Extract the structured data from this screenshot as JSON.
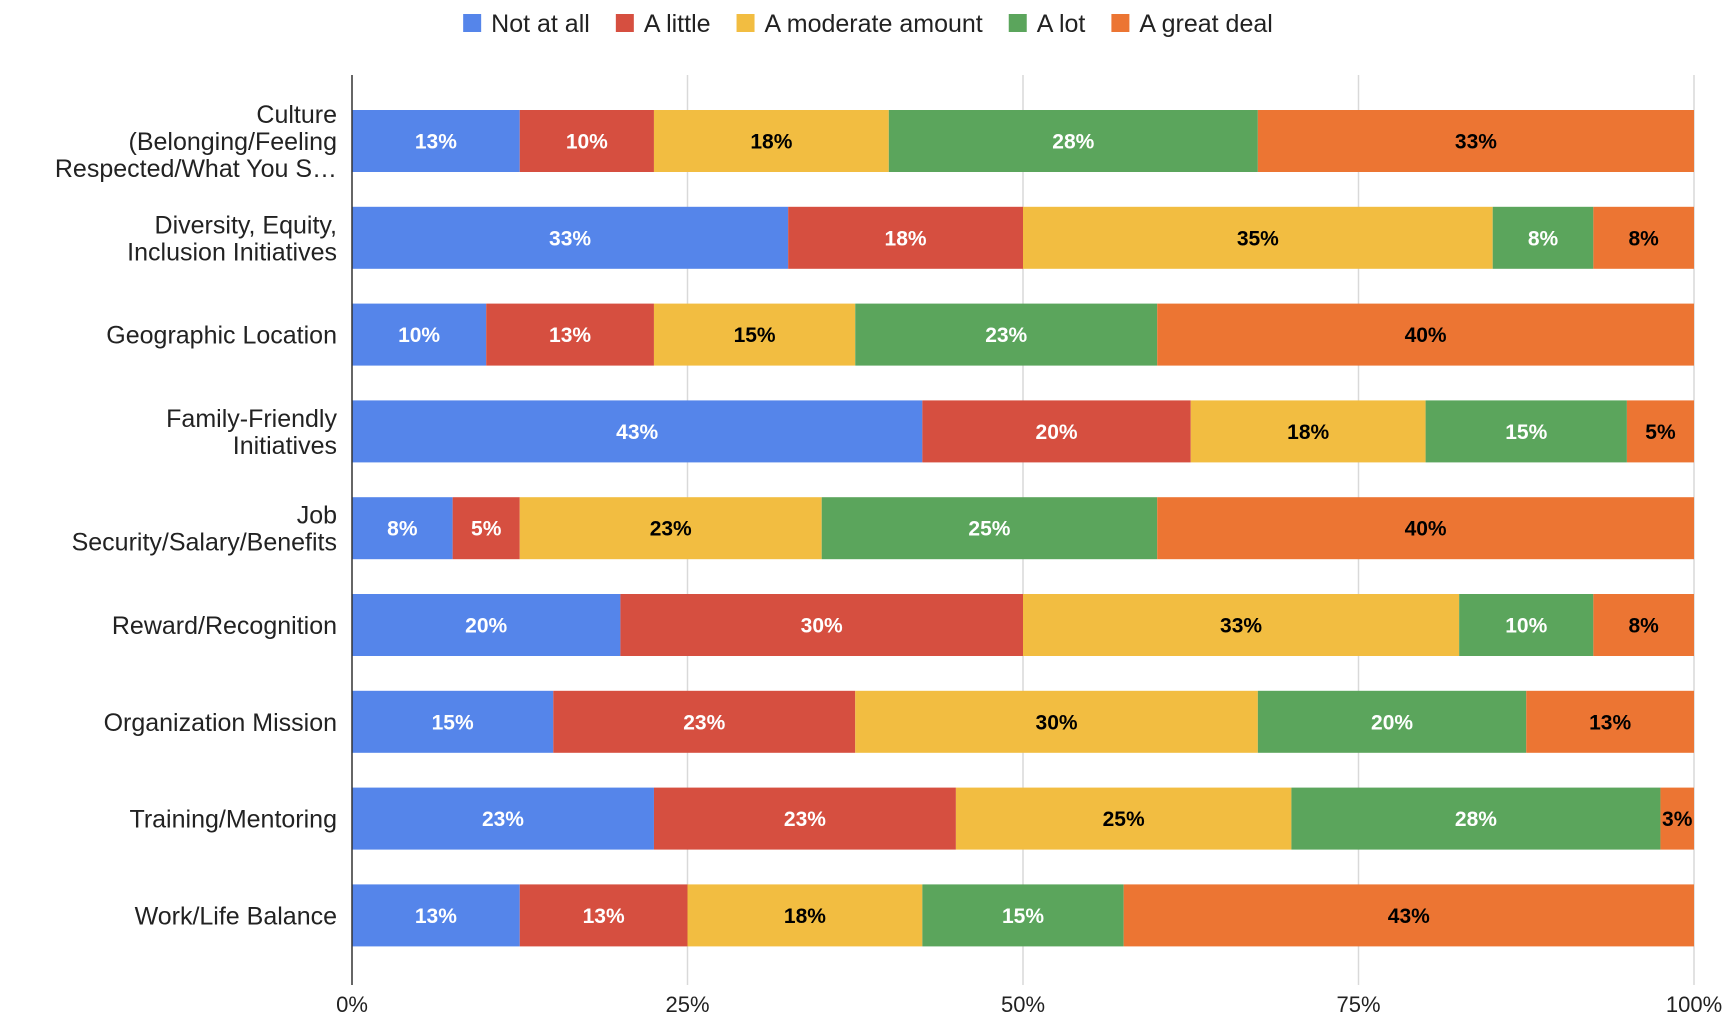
{
  "chart_data": {
    "type": "bar",
    "orientation": "horizontal",
    "stacked": "percent",
    "title": "",
    "xlabel": "",
    "ylabel": "",
    "xlim": [
      0,
      100
    ],
    "x_ticks": [
      "0%",
      "25%",
      "50%",
      "75%",
      "100%"
    ],
    "grid": true,
    "legend_position": "top",
    "categories": [
      "Culture (Belonging/Feeling Respected/What You S…",
      "Diversity, Equity, Inclusion Initiatives",
      "Geographic Location",
      "Family-Friendly Initiatives",
      "Job Security/Salary/Benefits",
      "Reward/Recognition",
      "Organization Mission",
      "Training/Mentoring",
      "Work/Life Balance"
    ],
    "category_label_lines": [
      [
        "Culture",
        "(Belonging/Feeling",
        "Respected/What You S…"
      ],
      [
        "Diversity, Equity,",
        "Inclusion Initiatives"
      ],
      [
        "Geographic Location"
      ],
      [
        "Family-Friendly",
        "Initiatives"
      ],
      [
        "Job",
        "Security/Salary/Benefits"
      ],
      [
        "Reward/Recognition"
      ],
      [
        "Organization Mission"
      ],
      [
        "Training/Mentoring"
      ],
      [
        "Work/Life Balance"
      ]
    ],
    "series": [
      {
        "name": "Not at all",
        "color": "#5585EA",
        "label_color": "#ffffff",
        "values": [
          12.5,
          32.5,
          10,
          42.5,
          7.5,
          20,
          15,
          22.5,
          12.5
        ],
        "labels": [
          "13%",
          "33%",
          "10%",
          "43%",
          "8%",
          "20%",
          "15%",
          "23%",
          "13%"
        ]
      },
      {
        "name": "A little",
        "color": "#D64F40",
        "label_color": "#ffffff",
        "values": [
          10,
          17.5,
          12.5,
          20,
          5,
          30,
          22.5,
          22.5,
          12.5
        ],
        "labels": [
          "10%",
          "18%",
          "13%",
          "20%",
          "5%",
          "30%",
          "23%",
          "23%",
          "13%"
        ]
      },
      {
        "name": "A moderate amount",
        "color": "#F2BD41",
        "label_color": "#000000",
        "values": [
          17.5,
          35,
          15,
          17.5,
          22.5,
          32.5,
          30,
          25,
          17.5
        ],
        "labels": [
          "18%",
          "35%",
          "15%",
          "18%",
          "23%",
          "33%",
          "30%",
          "25%",
          "18%"
        ]
      },
      {
        "name": "A lot",
        "color": "#5BA55C",
        "label_color": "#ffffff",
        "values": [
          27.5,
          7.5,
          22.5,
          15,
          25,
          10,
          20,
          27.5,
          15
        ],
        "labels": [
          "28%",
          "8%",
          "23%",
          "15%",
          "25%",
          "10%",
          "20%",
          "28%",
          "15%"
        ]
      },
      {
        "name": "A great deal",
        "color": "#EC7533",
        "label_color": "#000000",
        "values": [
          32.5,
          7.5,
          40,
          5,
          40,
          7.5,
          12.5,
          2.5,
          42.5
        ],
        "labels": [
          "33%",
          "8%",
          "40%",
          "5%",
          "40%",
          "8%",
          "13%",
          "3%",
          "43%"
        ]
      }
    ]
  }
}
